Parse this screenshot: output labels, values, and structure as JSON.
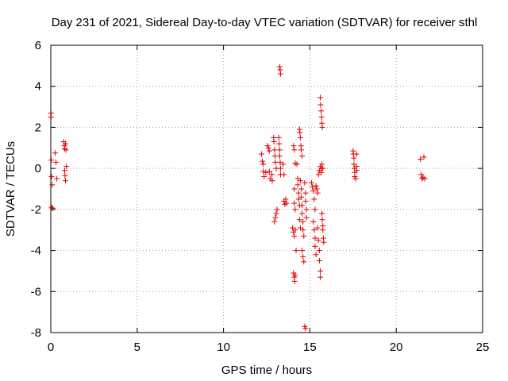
{
  "chart_data": {
    "type": "scatter",
    "title": "Day 231 of 2021, Sidereal Day-to-day VTEC variation (SDTVAR) for receiver sthl",
    "xlabel": "GPS time / hours",
    "ylabel": "SDTVAR / TECUs",
    "xlim": [
      0,
      25
    ],
    "ylim": [
      -8,
      6
    ],
    "xticks": [
      "0",
      "5",
      "10",
      "15",
      "20",
      "25"
    ],
    "yticks": [
      "-8",
      "-6",
      "-4",
      "-2",
      "0",
      "2",
      "4",
      "6"
    ],
    "grid": true,
    "marker": "plus",
    "color": "#e00000",
    "series": [
      {
        "points": [
          [
            0.02,
            2.7
          ],
          [
            0.02,
            2.5
          ],
          [
            0.03,
            0.4
          ],
          [
            0.05,
            -0.4
          ],
          [
            0.08,
            -0.8
          ],
          [
            0.05,
            -1.9
          ],
          [
            0.1,
            -1.95
          ],
          [
            0.25,
            0.75
          ],
          [
            0.3,
            0.3
          ],
          [
            0.35,
            -0.5
          ],
          [
            0.75,
            1.3
          ],
          [
            0.78,
            1.1
          ],
          [
            0.8,
            0.95
          ],
          [
            0.85,
            1.2
          ],
          [
            0.88,
            0.9
          ],
          [
            0.8,
            -0.1
          ],
          [
            0.82,
            -0.35
          ],
          [
            0.85,
            -0.6
          ],
          [
            0.9,
            0.1
          ],
          [
            12.2,
            0.7
          ],
          [
            12.25,
            0.35
          ],
          [
            12.3,
            0.2
          ],
          [
            12.3,
            -0.15
          ],
          [
            12.35,
            -0.4
          ],
          [
            12.45,
            -0.2
          ],
          [
            12.55,
            1.1
          ],
          [
            12.6,
            1.0
          ],
          [
            12.65,
            0.85
          ],
          [
            12.65,
            -0.15
          ],
          [
            12.7,
            -0.5
          ],
          [
            12.8,
            -0.3
          ],
          [
            12.82,
            -0.6
          ],
          [
            12.9,
            1.5
          ],
          [
            12.92,
            1.3
          ],
          [
            12.95,
            0.9
          ],
          [
            12.98,
            0.6
          ],
          [
            13.0,
            0.3
          ],
          [
            13.05,
            0.0
          ],
          [
            12.95,
            -2.6
          ],
          [
            13.0,
            -2.4
          ],
          [
            13.05,
            -2.2
          ],
          [
            13.1,
            -2.0
          ],
          [
            13.2,
            1.5
          ],
          [
            13.22,
            1.2
          ],
          [
            13.25,
            0.9
          ],
          [
            13.25,
            0.6
          ],
          [
            13.28,
            0.3
          ],
          [
            13.3,
            0.0
          ],
          [
            13.3,
            -0.3
          ],
          [
            13.25,
            4.95
          ],
          [
            13.28,
            4.8
          ],
          [
            13.3,
            4.6
          ],
          [
            13.45,
            0.2
          ],
          [
            13.5,
            -0.3
          ],
          [
            13.5,
            -1.6
          ],
          [
            13.55,
            -1.75
          ],
          [
            13.6,
            -1.5
          ],
          [
            13.65,
            -1.7
          ],
          [
            14.05,
            1.1
          ],
          [
            14.1,
            0.9
          ],
          [
            14.15,
            0.25
          ],
          [
            14.0,
            -2.9
          ],
          [
            14.05,
            -3.1
          ],
          [
            14.1,
            -3.3
          ],
          [
            14.15,
            -3.0
          ],
          [
            14.2,
            -4.0
          ],
          [
            14.1,
            -1.7
          ],
          [
            14.15,
            -2.0
          ],
          [
            14.1,
            -1.0
          ],
          [
            14.05,
            -5.1
          ],
          [
            14.1,
            -5.3
          ],
          [
            14.12,
            -5.5
          ],
          [
            14.15,
            -5.2
          ],
          [
            14.25,
            0.2
          ],
          [
            14.3,
            -0.5
          ],
          [
            14.3,
            -0.8
          ],
          [
            14.35,
            -1.2
          ],
          [
            14.35,
            -1.5
          ],
          [
            14.4,
            -1.8
          ],
          [
            14.4,
            -2.5
          ],
          [
            14.45,
            -2.9
          ],
          [
            14.4,
            1.9
          ],
          [
            14.42,
            1.75
          ],
          [
            14.45,
            1.5
          ],
          [
            14.48,
            1.1
          ],
          [
            14.5,
            0.9
          ],
          [
            14.55,
            0.6
          ],
          [
            14.45,
            -0.6
          ],
          [
            14.5,
            -1.0
          ],
          [
            14.5,
            -1.4
          ],
          [
            14.55,
            -1.8
          ],
          [
            14.55,
            -2.2
          ],
          [
            14.6,
            -2.6
          ],
          [
            14.6,
            -3.0
          ],
          [
            14.65,
            -3.3
          ],
          [
            14.55,
            -4.0
          ],
          [
            14.6,
            -4.3
          ],
          [
            14.65,
            -4.55
          ],
          [
            14.7,
            -0.7
          ],
          [
            14.75,
            -1.2
          ],
          [
            14.75,
            -1.6
          ],
          [
            14.8,
            -2.0
          ],
          [
            14.8,
            -2.4
          ],
          [
            14.7,
            -7.7
          ],
          [
            14.75,
            -7.8
          ],
          [
            15.1,
            -0.7
          ],
          [
            15.15,
            -0.9
          ],
          [
            15.2,
            -1.1
          ],
          [
            15.25,
            -1.5
          ],
          [
            15.3,
            -2.0
          ],
          [
            15.2,
            -2.6
          ],
          [
            15.25,
            -3.0
          ],
          [
            15.3,
            -3.4
          ],
          [
            15.3,
            -3.8
          ],
          [
            15.35,
            -4.2
          ],
          [
            15.35,
            -0.85
          ],
          [
            15.4,
            -1.0
          ],
          [
            15.45,
            -1.2
          ],
          [
            15.5,
            -0.3
          ],
          [
            15.55,
            -0.1
          ],
          [
            15.6,
            0.1
          ],
          [
            15.45,
            -2.9
          ],
          [
            15.5,
            -3.5
          ],
          [
            15.55,
            -4.0
          ],
          [
            15.55,
            -4.5
          ],
          [
            15.6,
            -5.0
          ],
          [
            15.6,
            -5.3
          ],
          [
            15.6,
            3.45
          ],
          [
            15.62,
            3.1
          ],
          [
            15.65,
            2.8
          ],
          [
            15.68,
            2.5
          ],
          [
            15.7,
            2.2
          ],
          [
            15.72,
            2.0
          ],
          [
            15.65,
            -0.2
          ],
          [
            15.68,
            0.0
          ],
          [
            15.7,
            0.2
          ],
          [
            15.75,
            0.0
          ],
          [
            15.7,
            -2.2
          ],
          [
            15.72,
            -2.5
          ],
          [
            15.75,
            -2.8
          ],
          [
            15.75,
            -3.0
          ],
          [
            15.78,
            -3.4
          ],
          [
            15.8,
            -3.6
          ],
          [
            17.5,
            0.85
          ],
          [
            17.52,
            0.7
          ],
          [
            17.55,
            0.5
          ],
          [
            17.55,
            0.2
          ],
          [
            17.58,
            0.0
          ],
          [
            17.6,
            -0.2
          ],
          [
            17.6,
            -0.4
          ],
          [
            17.65,
            -0.5
          ],
          [
            17.7,
            0.7
          ],
          [
            17.7,
            0.1
          ],
          [
            17.72,
            -0.1
          ],
          [
            21.4,
            0.45
          ],
          [
            21.45,
            -0.3
          ],
          [
            21.5,
            -0.5
          ],
          [
            21.55,
            -0.45
          ],
          [
            21.6,
            0.55
          ],
          [
            21.65,
            -0.5
          ]
        ]
      }
    ]
  }
}
